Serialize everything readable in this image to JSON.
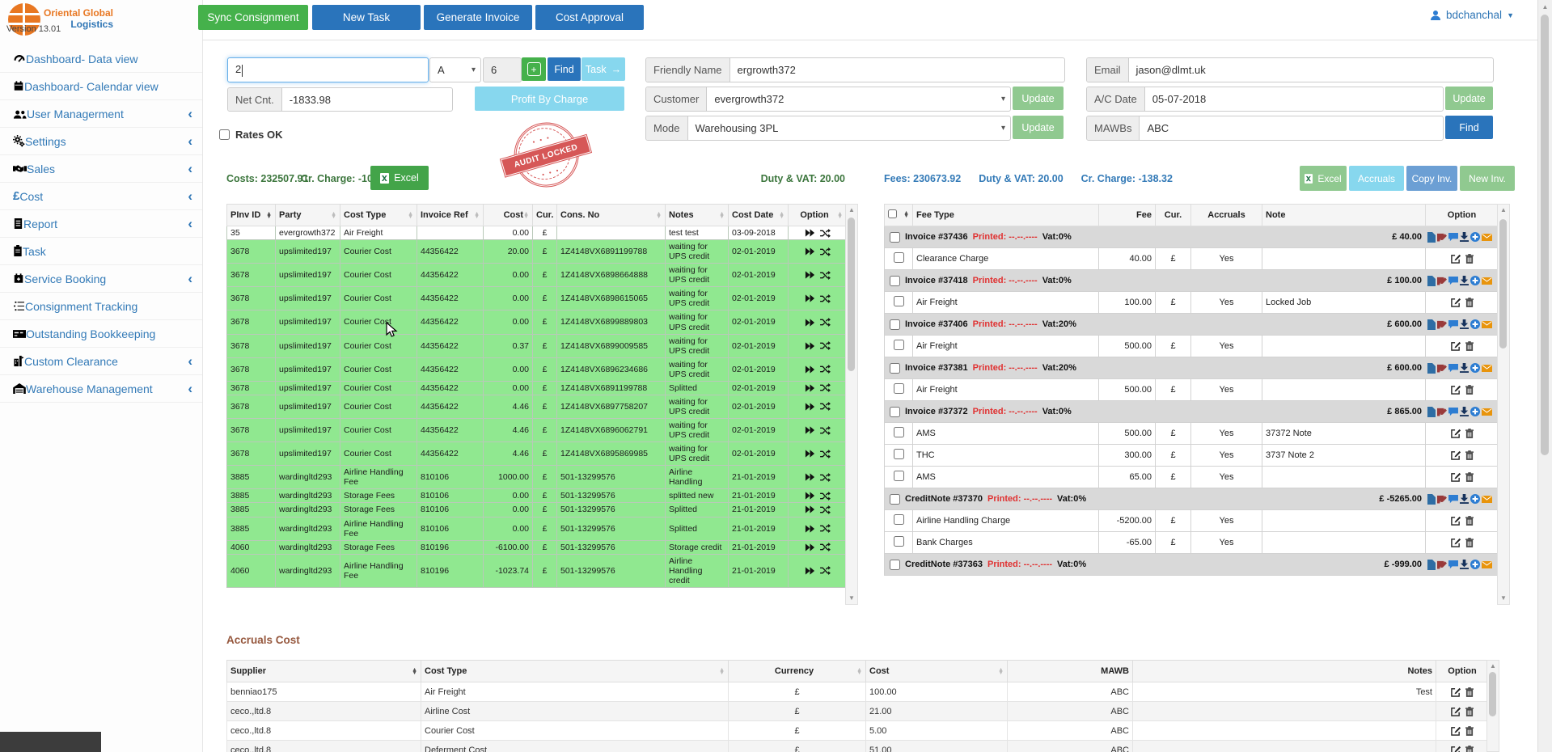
{
  "app": {
    "logo_line1": "Oriental Global",
    "logo_line2": "Logistics",
    "version": "Version 13.01",
    "user": "bdchanchal"
  },
  "topbar": {
    "buttons": [
      {
        "label": "Sync Consignment"
      },
      {
        "label": "New Task"
      },
      {
        "label": "Generate Invoice"
      },
      {
        "label": "Cost Approval"
      }
    ]
  },
  "sidebar": {
    "items": [
      {
        "label": "Dashboard- Data view",
        "icon": "dashboard-icon",
        "chevron": false
      },
      {
        "label": "Dashboard- Calendar view",
        "icon": "calendar-icon",
        "chevron": false
      },
      {
        "label": "User Managerment",
        "icon": "users-icon",
        "chevron": true
      },
      {
        "label": "Settings",
        "icon": "gears-icon",
        "chevron": true
      },
      {
        "label": "Sales",
        "icon": "handshake-icon",
        "chevron": true
      },
      {
        "label": "Cost",
        "icon": "pound-icon",
        "chevron": true
      },
      {
        "label": "Report",
        "icon": "report-icon",
        "chevron": true
      },
      {
        "label": "Task",
        "icon": "clipboard-icon",
        "chevron": false
      },
      {
        "label": "Service Booking",
        "icon": "calendar-plus-icon",
        "chevron": true
      },
      {
        "label": "Consignment Tracking",
        "icon": "list-icon",
        "chevron": false
      },
      {
        "label": "Outstanding Bookkeeping",
        "icon": "card-icon",
        "chevron": false
      },
      {
        "label": "Custom Clearance",
        "icon": "customs-icon",
        "chevron": true
      },
      {
        "label": "Warehouse Management",
        "icon": "warehouse-icon",
        "chevron": true
      }
    ]
  },
  "search": {
    "query_value": "2",
    "type_selected": "A",
    "count_value": "6",
    "find_label": "Find",
    "task_label": "Task",
    "net_cnt_label": "Net Cnt.",
    "net_cnt_value": "-1833.98",
    "profit_label": "Profit By Charge",
    "rates_ok_label": "Rates OK"
  },
  "details": {
    "friendly_name_label": "Friendly Name",
    "friendly_name_value": "ergrowth372",
    "customer_label": "Customer",
    "customer_value": "evergrowth372",
    "mode_label": "Mode",
    "mode_value": "Warehousing 3PL",
    "update_label": "Update",
    "email_label": "Email",
    "email_value": "jason@dlmt.uk",
    "ac_date_label": "A/C Date",
    "ac_date_value": "05-07-2018",
    "mawbs_label": "MAWBs",
    "mawbs_value": "ABC",
    "find_label": "Find"
  },
  "stamp": {
    "text": "AUDIT LOCKED"
  },
  "costs": {
    "summary_costs": "Costs: 232507.91",
    "summary_cr": "Cr. Charge: -104.03",
    "excel_label": "Excel",
    "duty_vat": "Duty & VAT: 20.00",
    "columns": [
      "PInv ID",
      "Party",
      "Cost Type",
      "Invoice Ref",
      "Cost",
      "Cur.",
      "Cons. No",
      "Notes",
      "Cost Date",
      "Option"
    ],
    "rows": [
      {
        "pinv": "35",
        "party": "evergrowth372",
        "cost_type": "Air Freight",
        "invoice_ref": "",
        "cost": "0.00",
        "cur": "£",
        "cons_no": "",
        "notes": "test test",
        "cost_date": "03-09-2018",
        "green": false
      },
      {
        "pinv": "3678",
        "party": "upslimited197",
        "cost_type": "Courier Cost",
        "invoice_ref": "44356422",
        "cost": "20.00",
        "cur": "£",
        "cons_no": "1Z4148VX6891199788",
        "notes": "waiting for UPS credit",
        "cost_date": "02-01-2019",
        "green": true
      },
      {
        "pinv": "3678",
        "party": "upslimited197",
        "cost_type": "Courier Cost",
        "invoice_ref": "44356422",
        "cost": "0.00",
        "cur": "£",
        "cons_no": "1Z4148VX6898664888",
        "notes": "waiting for UPS credit",
        "cost_date": "02-01-2019",
        "green": true
      },
      {
        "pinv": "3678",
        "party": "upslimited197",
        "cost_type": "Courier Cost",
        "invoice_ref": "44356422",
        "cost": "0.00",
        "cur": "£",
        "cons_no": "1Z4148VX6898615065",
        "notes": "waiting for UPS credit",
        "cost_date": "02-01-2019",
        "green": true
      },
      {
        "pinv": "3678",
        "party": "upslimited197",
        "cost_type": "Courier Cost",
        "invoice_ref": "44356422",
        "cost": "0.00",
        "cur": "£",
        "cons_no": "1Z4148VX6899889803",
        "notes": "waiting for UPS credit",
        "cost_date": "02-01-2019",
        "green": true
      },
      {
        "pinv": "3678",
        "party": "upslimited197",
        "cost_type": "Courier Cost",
        "invoice_ref": "44356422",
        "cost": "0.37",
        "cur": "£",
        "cons_no": "1Z4148VX6899009585",
        "notes": "waiting for UPS credit",
        "cost_date": "02-01-2019",
        "green": true
      },
      {
        "pinv": "3678",
        "party": "upslimited197",
        "cost_type": "Courier Cost",
        "invoice_ref": "44356422",
        "cost": "0.00",
        "cur": "£",
        "cons_no": "1Z4148VX6896234686",
        "notes": "waiting for UPS credit",
        "cost_date": "02-01-2019",
        "green": true
      },
      {
        "pinv": "3678",
        "party": "upslimited197",
        "cost_type": "Courier Cost",
        "invoice_ref": "44356422",
        "cost": "0.00",
        "cur": "£",
        "cons_no": "1Z4148VX6891199788",
        "notes": "Splitted",
        "cost_date": "02-01-2019",
        "green": true
      },
      {
        "pinv": "3678",
        "party": "upslimited197",
        "cost_type": "Courier Cost",
        "invoice_ref": "44356422",
        "cost": "4.46",
        "cur": "£",
        "cons_no": "1Z4148VX6897758207",
        "notes": "waiting for UPS credit",
        "cost_date": "02-01-2019",
        "green": true
      },
      {
        "pinv": "3678",
        "party": "upslimited197",
        "cost_type": "Courier Cost",
        "invoice_ref": "44356422",
        "cost": "4.46",
        "cur": "£",
        "cons_no": "1Z4148VX6896062791",
        "notes": "waiting for UPS credit",
        "cost_date": "02-01-2019",
        "green": true
      },
      {
        "pinv": "3678",
        "party": "upslimited197",
        "cost_type": "Courier Cost",
        "invoice_ref": "44356422",
        "cost": "4.46",
        "cur": "£",
        "cons_no": "1Z4148VX6895869985",
        "notes": "waiting for UPS credit",
        "cost_date": "02-01-2019",
        "green": true
      },
      {
        "pinv": "3885",
        "party": "wardingltd293",
        "cost_type": "Airline Handling Fee",
        "invoice_ref": "810106",
        "cost": "1000.00",
        "cur": "£",
        "cons_no": "501-13299576",
        "notes": "Airline Handling",
        "cost_date": "21-01-2019",
        "green": true
      },
      {
        "pinv": "3885",
        "party": "wardingltd293",
        "cost_type": "Storage Fees",
        "invoice_ref": "810106",
        "cost": "0.00",
        "cur": "£",
        "cons_no": "501-13299576",
        "notes": "splitted new",
        "cost_date": "21-01-2019",
        "green": true
      },
      {
        "pinv": "3885",
        "party": "wardingltd293",
        "cost_type": "Storage Fees",
        "invoice_ref": "810106",
        "cost": "0.00",
        "cur": "£",
        "cons_no": "501-13299576",
        "notes": "Splitted",
        "cost_date": "21-01-2019",
        "green": true
      },
      {
        "pinv": "3885",
        "party": "wardingltd293",
        "cost_type": "Airline Handling Fee",
        "invoice_ref": "810106",
        "cost": "0.00",
        "cur": "£",
        "cons_no": "501-13299576",
        "notes": "Splitted",
        "cost_date": "21-01-2019",
        "green": true
      },
      {
        "pinv": "4060",
        "party": "wardingltd293",
        "cost_type": "Storage Fees",
        "invoice_ref": "810196",
        "cost": "-6100.00",
        "cur": "£",
        "cons_no": "501-13299576",
        "notes": "Storage credit",
        "cost_date": "21-01-2019",
        "green": true
      },
      {
        "pinv": "4060",
        "party": "wardingltd293",
        "cost_type": "Airline Handling Fee",
        "invoice_ref": "810196",
        "cost": "-1023.74",
        "cur": "£",
        "cons_no": "501-13299576",
        "notes": "Airline Handling credit",
        "cost_date": "21-01-2019",
        "green": true
      }
    ]
  },
  "fees": {
    "summary_fees": "Fees: 230673.92",
    "duty_vat": "Duty & VAT: 20.00",
    "summary_cr": "Cr. Charge: -138.32",
    "excel_label": "Excel",
    "accruals_label": "Accruals",
    "copy_label": "Copy Inv.",
    "new_label": "New Inv.",
    "columns": [
      "Fee Type",
      "Fee",
      "Cur.",
      "Accruals",
      "Note",
      "Option"
    ],
    "groups": [
      {
        "title": "Invoice #37436",
        "printed": "Printed: --.--.----",
        "vat": "Vat:0%",
        "total": "£ 40.00",
        "items": [
          {
            "fee_type": "Clearance Charge",
            "fee": "40.00",
            "cur": "£",
            "accruals": "Yes",
            "note": ""
          }
        ]
      },
      {
        "title": "Invoice #37418",
        "printed": "Printed: --.--.----",
        "vat": "Vat:0%",
        "total": "£ 100.00",
        "items": [
          {
            "fee_type": "Air Freight",
            "fee": "100.00",
            "cur": "£",
            "accruals": "Yes",
            "note": "Locked Job"
          }
        ]
      },
      {
        "title": "Invoice #37406",
        "printed": "Printed: --.--.----",
        "vat": "Vat:20%",
        "total": "£ 600.00",
        "items": [
          {
            "fee_type": "Air Freight",
            "fee": "500.00",
            "cur": "£",
            "accruals": "Yes",
            "note": ""
          }
        ]
      },
      {
        "title": "Invoice #37381",
        "printed": "Printed: --.--.----",
        "vat": "Vat:20%",
        "total": "£ 600.00",
        "items": [
          {
            "fee_type": "Air Freight",
            "fee": "500.00",
            "cur": "£",
            "accruals": "Yes",
            "note": ""
          }
        ]
      },
      {
        "title": "Invoice #37372",
        "printed": "Printed: --.--.----",
        "vat": "Vat:0%",
        "total": "£ 865.00",
        "items": [
          {
            "fee_type": "AMS",
            "fee": "500.00",
            "cur": "£",
            "accruals": "Yes",
            "note": "37372 Note"
          },
          {
            "fee_type": "THC",
            "fee": "300.00",
            "cur": "£",
            "accruals": "Yes",
            "note": "3737 Note 2"
          },
          {
            "fee_type": "AMS",
            "fee": "65.00",
            "cur": "£",
            "accruals": "Yes",
            "note": ""
          }
        ]
      },
      {
        "title": "CreditNote #37370",
        "printed": "Printed: --.--.----",
        "vat": "Vat:0%",
        "total": "£ -5265.00",
        "items": [
          {
            "fee_type": "Airline Handling Charge",
            "fee": "-5200.00",
            "cur": "£",
            "accruals": "Yes",
            "note": ""
          },
          {
            "fee_type": "Bank Charges",
            "fee": "-65.00",
            "cur": "£",
            "accruals": "Yes",
            "note": ""
          }
        ]
      },
      {
        "title": "CreditNote #37363",
        "printed": "Printed: --.--.----",
        "vat": "Vat:0%",
        "total": "£ -999.00",
        "items": []
      }
    ]
  },
  "accruals": {
    "title": "Accruals Cost",
    "columns": [
      "Supplier",
      "Cost Type",
      "Currency",
      "Cost",
      "MAWB",
      "Notes",
      "Option"
    ],
    "rows": [
      {
        "supplier": "benniao175",
        "cost_type": "Air Freight",
        "currency": "£",
        "cost": "100.00",
        "mawb": "ABC",
        "notes": "Test"
      },
      {
        "supplier": "ceco.,ltd.8",
        "cost_type": "Airline Cost",
        "currency": "£",
        "cost": "21.00",
        "mawb": "ABC",
        "notes": ""
      },
      {
        "supplier": "ceco.,ltd.8",
        "cost_type": "Courier Cost",
        "currency": "£",
        "cost": "5.00",
        "mawb": "ABC",
        "notes": ""
      },
      {
        "supplier": "ceco.,ltd.8",
        "cost_type": "Deferment Cost",
        "currency": "£",
        "cost": "51.00",
        "mawb": "ABC",
        "notes": ""
      }
    ]
  },
  "colors": {
    "accent_blue": "#2a74bb",
    "accent_green": "#45b14b",
    "light_blue": "#87d7ee",
    "soft_green": "#90c990",
    "steel_blue": "#6c9fd4",
    "row_green": "#90e890",
    "link_blue": "#337ab7",
    "summary_green": "#3c763d",
    "printed_red": "#e03131",
    "accruals_brown": "#96583e"
  }
}
